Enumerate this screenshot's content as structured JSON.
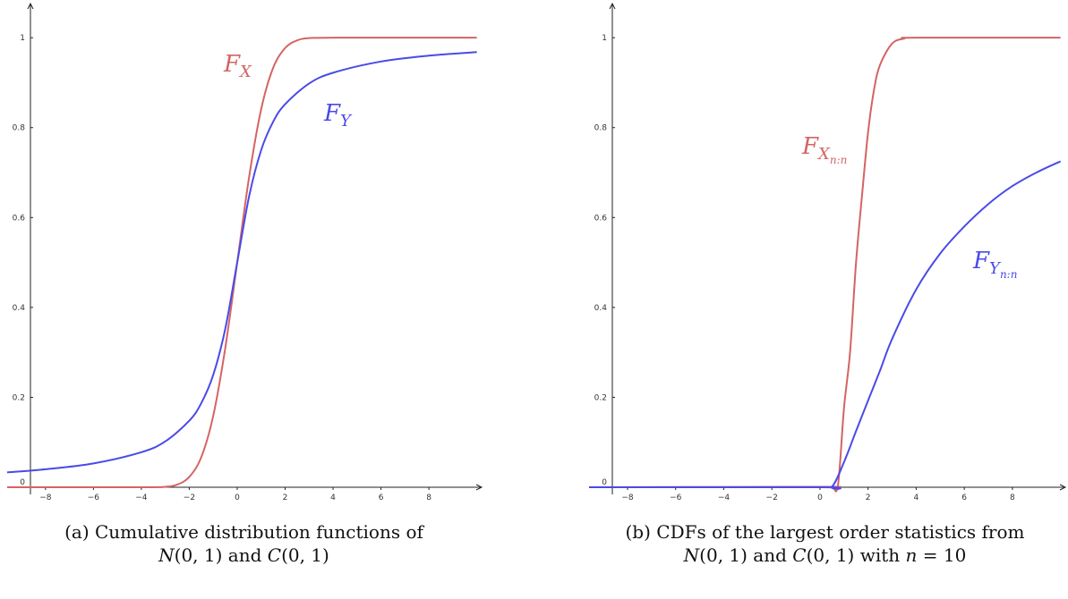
{
  "chart_data": [
    {
      "type": "line",
      "panel": "a",
      "xlim": [
        -9.6,
        10.2
      ],
      "ylim": [
        0,
        1.06
      ],
      "x_ticks": [
        -8,
        -6,
        -4,
        -2,
        0,
        2,
        4,
        6,
        8
      ],
      "y_ticks": [
        0.2,
        0.4,
        0.6,
        0.8,
        1
      ],
      "origin_label": "0",
      "series": [
        {
          "label_base": "F",
          "label_sub": "X",
          "label_subsub": "",
          "color": "#d46464",
          "x": [
            -9.6,
            -4,
            -3,
            -2.5,
            -2,
            -1.5,
            -1,
            -0.5,
            0,
            0.5,
            1,
            1.5,
            2,
            2.5,
            3,
            4,
            10
          ],
          "y": [
            0,
            0,
            0.001,
            0.006,
            0.023,
            0.067,
            0.159,
            0.309,
            0.5,
            0.691,
            0.841,
            0.933,
            0.977,
            0.994,
            0.999,
            1,
            1
          ]
        },
        {
          "label_base": "F",
          "label_sub": "Y",
          "label_subsub": "",
          "color": "#4a4ae8",
          "x": [
            -9.6,
            -8,
            -6,
            -4,
            -3,
            -2,
            -1.5,
            -1,
            -0.5,
            0,
            0.5,
            1,
            1.5,
            2,
            3,
            4,
            6,
            8,
            10
          ],
          "y": [
            0.033,
            0.04,
            0.053,
            0.078,
            0.102,
            0.148,
            0.187,
            0.25,
            0.352,
            0.5,
            0.648,
            0.75,
            0.813,
            0.852,
            0.898,
            0.922,
            0.947,
            0.96,
            0.968
          ]
        }
      ],
      "caption_lines": [
        [
          {
            "t": "(a) Cumulative distribution functions of",
            "m": false
          }
        ],
        [
          {
            "t": "N",
            "m": true
          },
          {
            "t": "(0, 1) and ",
            "m": false
          },
          {
            "t": "C",
            "m": true
          },
          {
            "t": "(0, 1)",
            "m": false
          }
        ]
      ]
    },
    {
      "type": "line",
      "panel": "b",
      "xlim": [
        -9.6,
        10.2
      ],
      "ylim": [
        0,
        1.06
      ],
      "x_ticks": [
        -8,
        -6,
        -4,
        -2,
        0,
        2,
        4,
        6,
        8
      ],
      "y_ticks": [
        0.2,
        0.4,
        0.6,
        0.8,
        1
      ],
      "origin_label": "0",
      "series": [
        {
          "label_base": "F",
          "label_sub": "X",
          "label_subsub": "n:n",
          "color": "#d46464",
          "x": [
            -9.6,
            0,
            0.5,
            0.75,
            1,
            1.25,
            1.5,
            1.75,
            2,
            2.25,
            2.5,
            3,
            3.5,
            4,
            10
          ],
          "y": [
            0,
            0.001,
            0.0006,
            0.005,
            0.177,
            0.3,
            0.5,
            0.65,
            0.79,
            0.885,
            0.94,
            0.987,
            0.998,
            1,
            1
          ]
        },
        {
          "label_base": "F",
          "label_sub": "Y",
          "label_subsub": "n:n",
          "color": "#4a4ae8",
          "x": [
            -9.6,
            0,
            0.5,
            1,
            1.5,
            2,
            2.5,
            3,
            4,
            5,
            6,
            7,
            8,
            9,
            10
          ],
          "y": [
            0,
            0,
            0.001,
            0.056,
            0.125,
            0.193,
            0.26,
            0.33,
            0.44,
            0.52,
            0.58,
            0.63,
            0.67,
            0.7,
            0.725
          ]
        }
      ],
      "caption_lines": [
        [
          {
            "t": "(b) CDFs of the largest order statistics from",
            "m": false
          }
        ],
        [
          {
            "t": "N",
            "m": true
          },
          {
            "t": "(0, 1) and ",
            "m": false
          },
          {
            "t": "C",
            "m": true
          },
          {
            "t": "(0, 1) with ",
            "m": false
          },
          {
            "t": "n",
            "m": true
          },
          {
            "t": " = 10",
            "m": false
          }
        ]
      ]
    }
  ]
}
